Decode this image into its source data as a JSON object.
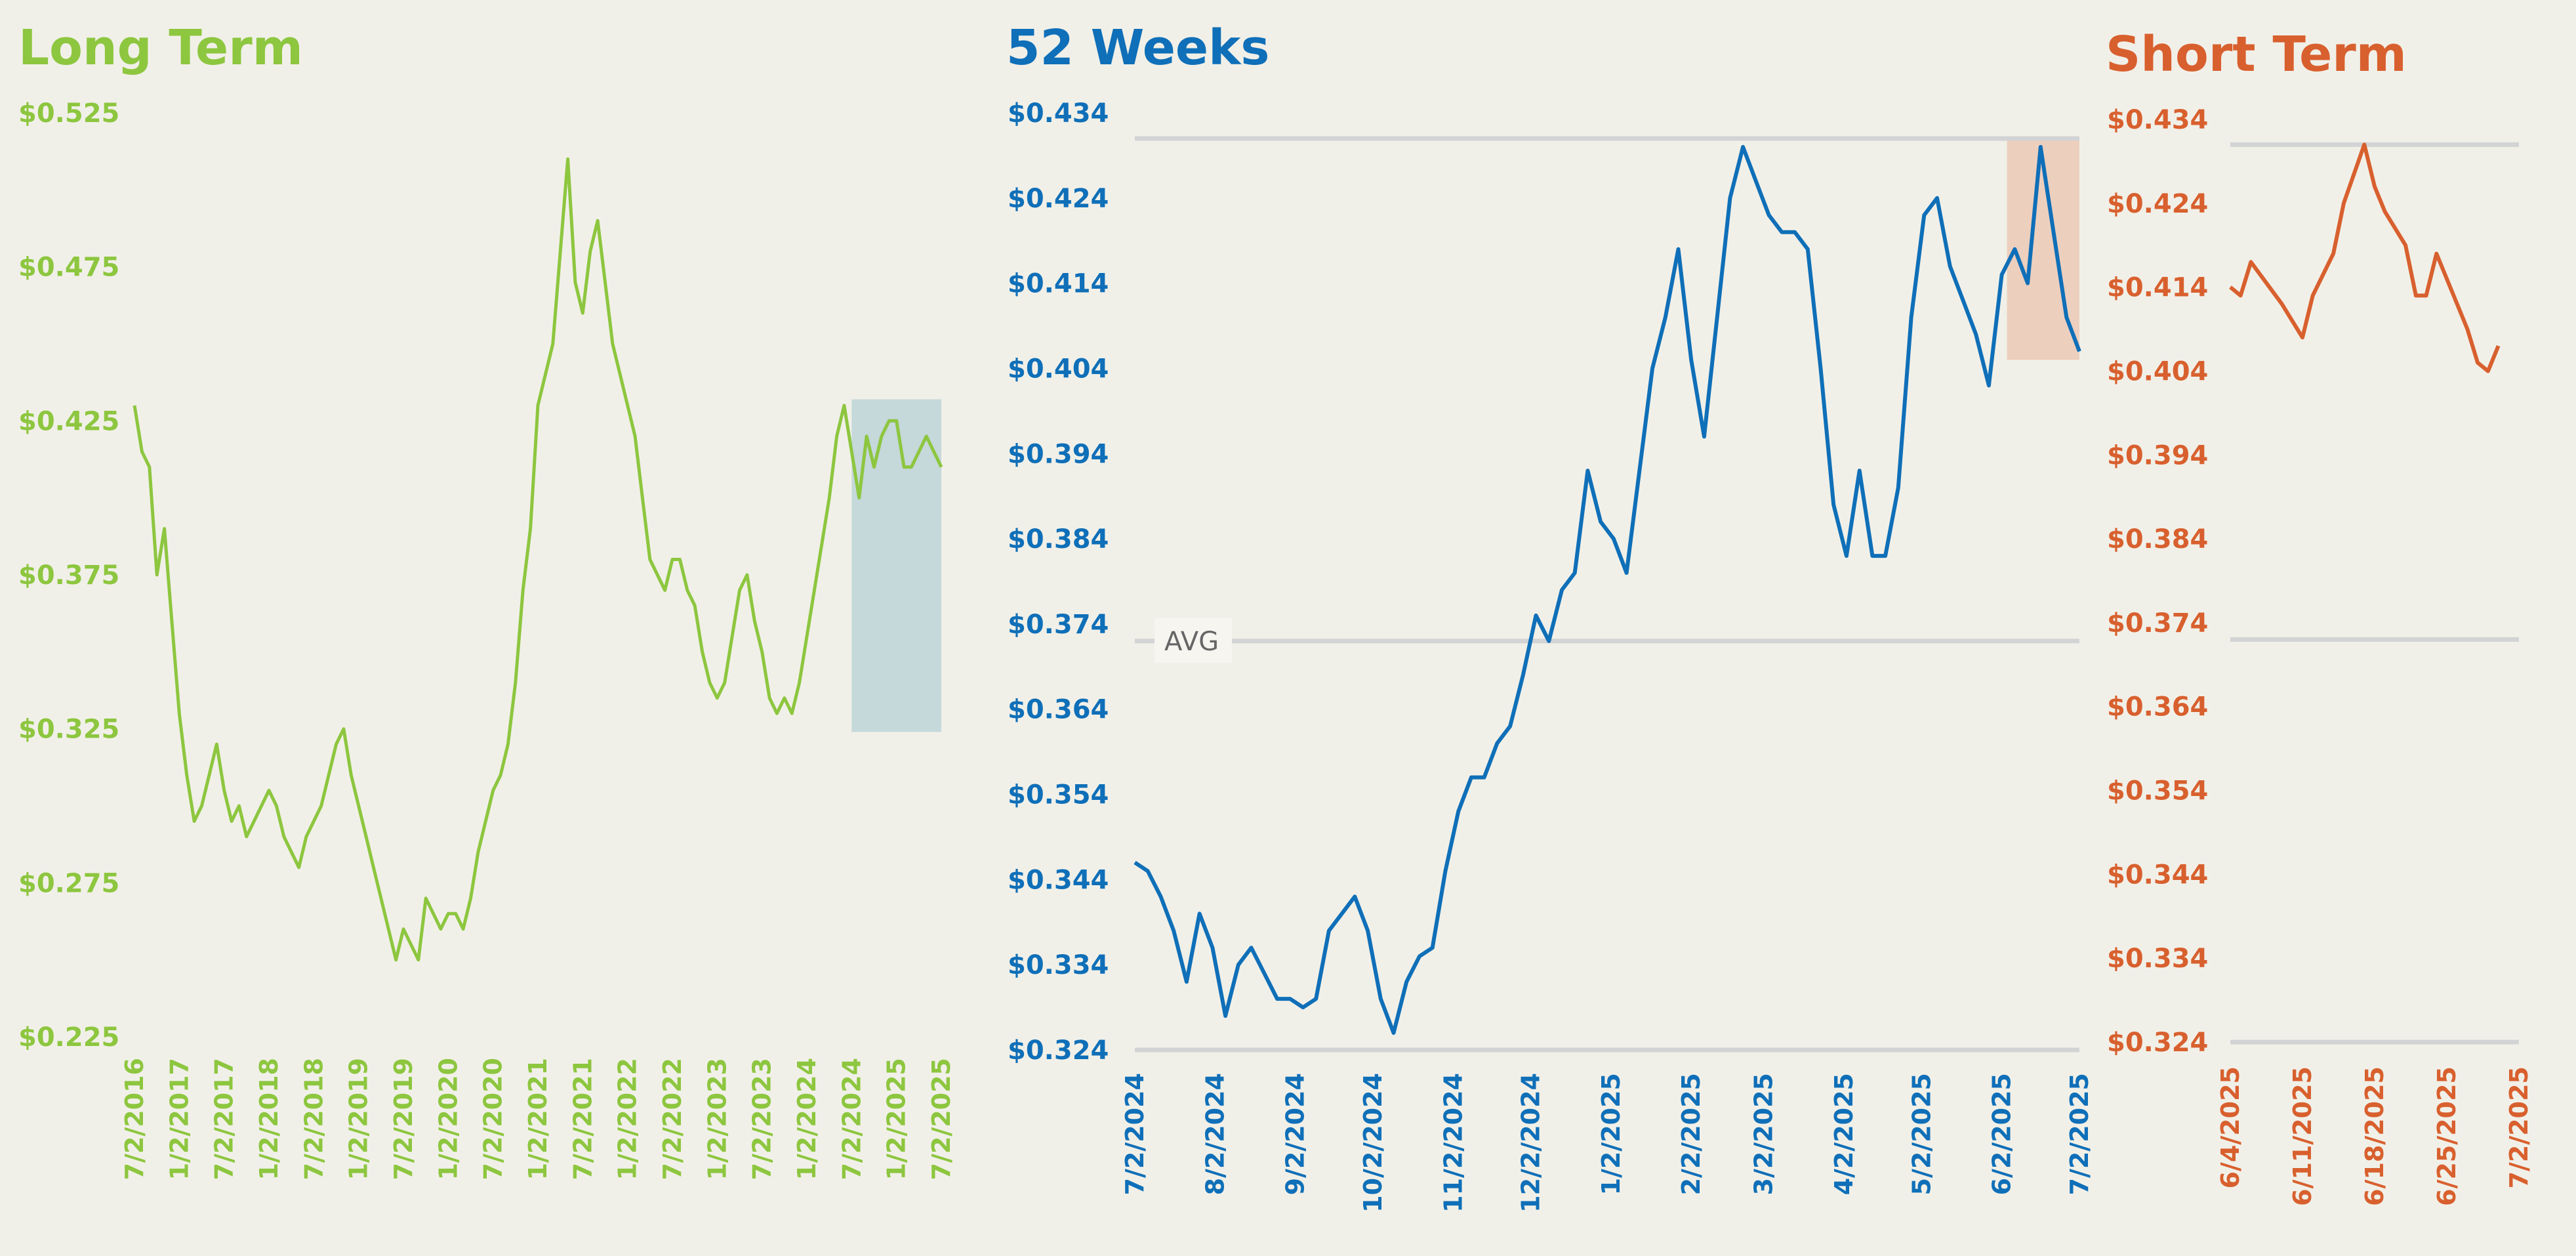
{
  "colors": {
    "background": "#f1f0e8",
    "long_term": "#8dc63f",
    "weeks_52": "#0f6fb8",
    "short_term": "#d8602e",
    "gridline": "#d2d3d5",
    "long_highlight": "#c5d8da",
    "weeks_highlight": "#edcfbe",
    "avg_text": "#666666"
  },
  "chart_data": [
    {
      "type": "line",
      "title": "Long Term",
      "color": "#8dc63f",
      "ylim": [
        0.225,
        0.525
      ],
      "yticks": [
        "$0.525",
        "$0.475",
        "$0.425",
        "$0.375",
        "$0.325",
        "$0.275",
        "$0.225"
      ],
      "ytick_values": [
        0.525,
        0.475,
        0.425,
        0.375,
        0.325,
        0.275,
        0.225
      ],
      "xlim": [
        0,
        108
      ],
      "xticks": [
        "7/2/2016",
        "1/2/2017",
        "7/2/2017",
        "1/2/2018",
        "7/2/2018",
        "1/2/2019",
        "7/2/2019",
        "1/2/2020",
        "7/2/2020",
        "1/2/2021",
        "7/2/2021",
        "1/2/2022",
        "7/2/2022",
        "1/2/2023",
        "7/2/2023",
        "1/2/2024",
        "7/2/2024",
        "1/2/2025",
        "7/2/2025"
      ],
      "xtick_values": [
        0,
        6,
        12,
        18,
        24,
        30,
        36,
        42,
        48,
        54,
        60,
        66,
        72,
        78,
        84,
        90,
        96,
        102,
        108
      ],
      "highlight": {
        "x": [
          96,
          108
        ],
        "y": [
          0.324,
          0.432
        ]
      },
      "grid": false,
      "x": [
        0,
        1,
        2,
        3,
        4,
        5,
        6,
        7,
        8,
        9,
        10,
        11,
        12,
        13,
        14,
        15,
        16,
        17,
        18,
        19,
        20,
        21,
        22,
        23,
        24,
        25,
        26,
        27,
        28,
        29,
        30,
        31,
        32,
        33,
        34,
        35,
        36,
        37,
        38,
        39,
        40,
        41,
        42,
        43,
        44,
        45,
        46,
        47,
        48,
        49,
        50,
        51,
        52,
        53,
        54,
        55,
        56,
        57,
        58,
        59,
        60,
        61,
        62,
        63,
        64,
        65,
        66,
        67,
        68,
        69,
        70,
        71,
        72,
        73,
        74,
        75,
        76,
        77,
        78,
        79,
        80,
        81,
        82,
        83,
        84,
        85,
        86,
        87,
        88,
        89,
        90,
        91,
        92,
        93,
        94,
        95,
        96,
        97,
        98,
        99,
        100,
        101,
        102,
        103,
        104,
        105,
        106,
        107,
        108
      ],
      "values": [
        0.43,
        0.415,
        0.41,
        0.375,
        0.39,
        0.36,
        0.33,
        0.31,
        0.295,
        0.3,
        0.31,
        0.32,
        0.305,
        0.295,
        0.3,
        0.29,
        0.295,
        0.3,
        0.305,
        0.3,
        0.29,
        0.285,
        0.28,
        0.29,
        0.295,
        0.3,
        0.31,
        0.32,
        0.325,
        0.31,
        0.3,
        0.29,
        0.28,
        0.27,
        0.26,
        0.25,
        0.26,
        0.255,
        0.25,
        0.27,
        0.265,
        0.26,
        0.265,
        0.265,
        0.26,
        0.27,
        0.285,
        0.295,
        0.305,
        0.31,
        0.32,
        0.34,
        0.37,
        0.39,
        0.43,
        0.44,
        0.45,
        0.48,
        0.51,
        0.47,
        0.46,
        0.48,
        0.49,
        0.47,
        0.45,
        0.44,
        0.43,
        0.42,
        0.4,
        0.38,
        0.375,
        0.37,
        0.38,
        0.38,
        0.37,
        0.365,
        0.35,
        0.34,
        0.335,
        0.34,
        0.355,
        0.37,
        0.375,
        0.36,
        0.35,
        0.335,
        0.33,
        0.335,
        0.33,
        0.34,
        0.355,
        0.37,
        0.385,
        0.4,
        0.42,
        0.43,
        0.415,
        0.4,
        0.42,
        0.41,
        0.42,
        0.425,
        0.425,
        0.41,
        0.41,
        0.415,
        0.42,
        0.415,
        0.41
      ]
    },
    {
      "type": "line",
      "title": "52 Weeks",
      "color": "#0f6fb8",
      "ylim": [
        0.324,
        0.434
      ],
      "yticks": [
        "$0.434",
        "$0.424",
        "$0.414",
        "$0.404",
        "$0.394",
        "$0.384",
        "$0.374",
        "$0.364",
        "$0.354",
        "$0.344",
        "$0.334",
        "$0.324"
      ],
      "ytick_values": [
        0.434,
        0.424,
        0.414,
        0.404,
        0.394,
        0.384,
        0.374,
        0.364,
        0.354,
        0.344,
        0.334,
        0.324
      ],
      "xlim": [
        0,
        365
      ],
      "xticks": [
        "7/2/2024",
        "8/2/2024",
        "9/2/2024",
        "10/2/2024",
        "11/2/2024",
        "12/2/2024",
        "1/2/2025",
        "2/2/2025",
        "3/2/2025",
        "4/2/2025",
        "5/2/2025",
        "6/2/2025",
        "7/2/2025"
      ],
      "xtick_values": [
        0,
        31,
        62,
        92,
        123,
        153,
        184,
        215,
        243,
        274,
        304,
        335,
        365
      ],
      "gridlines": [
        0.431,
        0.372,
        0.324
      ],
      "avg_label": "AVG",
      "avg_value": 0.372,
      "highlight": {
        "x": [
          337,
          365
        ],
        "y": [
          0.405,
          0.431
        ]
      },
      "x": [
        0,
        5,
        10,
        15,
        20,
        25,
        30,
        35,
        40,
        45,
        50,
        55,
        60,
        65,
        70,
        75,
        80,
        85,
        90,
        95,
        100,
        105,
        110,
        115,
        120,
        125,
        130,
        135,
        140,
        145,
        150,
        155,
        160,
        165,
        170,
        175,
        180,
        185,
        190,
        195,
        200,
        205,
        210,
        215,
        220,
        225,
        230,
        235,
        240,
        245,
        250,
        255,
        260,
        265,
        270,
        275,
        280,
        285,
        290,
        295,
        300,
        305,
        310,
        315,
        320,
        325,
        330,
        335,
        340,
        345,
        350,
        355,
        360,
        365
      ],
      "values": [
        0.346,
        0.345,
        0.342,
        0.338,
        0.332,
        0.34,
        0.336,
        0.328,
        0.334,
        0.336,
        0.333,
        0.33,
        0.33,
        0.329,
        0.33,
        0.338,
        0.34,
        0.342,
        0.338,
        0.33,
        0.326,
        0.332,
        0.335,
        0.336,
        0.345,
        0.352,
        0.356,
        0.356,
        0.36,
        0.362,
        0.368,
        0.375,
        0.372,
        0.378,
        0.38,
        0.392,
        0.386,
        0.384,
        0.38,
        0.392,
        0.404,
        0.41,
        0.418,
        0.405,
        0.396,
        0.41,
        0.424,
        0.43,
        0.426,
        0.422,
        0.42,
        0.42,
        0.418,
        0.404,
        0.388,
        0.382,
        0.392,
        0.382,
        0.382,
        0.39,
        0.41,
        0.422,
        0.424,
        0.416,
        0.412,
        0.408,
        0.402,
        0.415,
        0.418,
        0.414,
        0.43,
        0.42,
        0.41,
        0.406
      ]
    },
    {
      "type": "line",
      "title": "Short Term",
      "color": "#d8602e",
      "ylim": [
        0.324,
        0.434
      ],
      "yticks": [
        "$0.434",
        "$0.424",
        "$0.414",
        "$0.404",
        "$0.394",
        "$0.384",
        "$0.374",
        "$0.364",
        "$0.354",
        "$0.344",
        "$0.334",
        "$0.324"
      ],
      "ytick_values": [
        0.434,
        0.424,
        0.414,
        0.404,
        0.394,
        0.384,
        0.374,
        0.364,
        0.354,
        0.344,
        0.334,
        0.324
      ],
      "xlim": [
        0,
        28
      ],
      "xticks": [
        "6/4/2025",
        "6/11/2025",
        "6/18/2025",
        "6/25/2025",
        "7/2/2025"
      ],
      "xtick_values": [
        0,
        7,
        14,
        21,
        28
      ],
      "gridlines": [
        0.431,
        0.372,
        0.324
      ],
      "x": [
        0,
        1,
        2,
        5,
        7,
        8,
        10,
        11,
        13,
        14,
        15,
        17,
        18,
        19,
        20,
        21,
        23,
        24,
        25,
        26
      ],
      "values": [
        0.414,
        0.413,
        0.417,
        0.412,
        0.408,
        0.413,
        0.418,
        0.424,
        0.431,
        0.426,
        0.423,
        0.419,
        0.413,
        0.413,
        0.418,
        0.415,
        0.409,
        0.405,
        0.404,
        0.407
      ]
    }
  ]
}
